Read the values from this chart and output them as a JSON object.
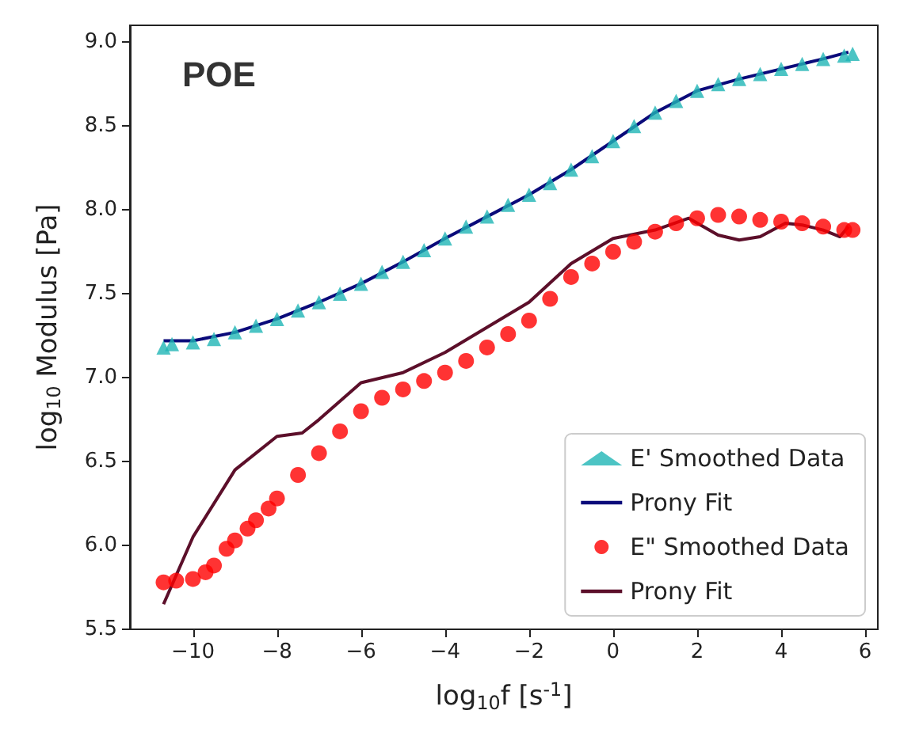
{
  "chart_data": {
    "type": "scatter",
    "xlabel": "log$_{10}$f [s$^{-1}$]",
    "ylabel": "log$_{10}$ Modulus [Pa]",
    "annotations": [
      "POE"
    ],
    "xlim": [
      -11.5,
      6.3
    ],
    "xticks": [
      -10,
      -8,
      -6,
      -4,
      -2,
      0,
      2,
      4,
      6
    ],
    "ylim": [
      5.5,
      9.1
    ],
    "yticks": [
      5.5,
      {
        "value": 6,
        "label": "6.0"
      },
      6.5,
      {
        "value": 7,
        "label": "7.0"
      },
      7.5,
      {
        "value": 8,
        "label": "8.0"
      },
      8.5,
      {
        "value": 9,
        "label": "9.0"
      }
    ],
    "grid": false,
    "legend": "bottom right",
    "series": [
      {
        "name": "E' Smoothed Data",
        "marker": "triangle",
        "color": "#1fb5b5",
        "x": [
          -10.7,
          -10.5,
          -10,
          -9.5,
          -9,
          -8.5,
          -8,
          -7.5,
          -7,
          -6.5,
          -6,
          -5.5,
          -5,
          -4.5,
          -4,
          -3.5,
          -3,
          -2.5,
          -2,
          -1.5,
          -1,
          -0.5,
          0,
          0.5,
          1,
          1.5,
          2,
          2.5,
          3,
          3.5,
          4,
          4.5,
          5,
          5.5,
          5.7
        ],
        "values": [
          7.18,
          7.2,
          7.21,
          7.23,
          7.27,
          7.31,
          7.35,
          7.4,
          7.45,
          7.5,
          7.56,
          7.63,
          7.69,
          7.76,
          7.83,
          7.9,
          7.96,
          8.03,
          8.09,
          8.16,
          8.24,
          8.32,
          8.41,
          8.5,
          8.58,
          8.65,
          8.71,
          8.75,
          8.78,
          8.81,
          8.84,
          8.87,
          8.9,
          8.92,
          8.93
        ]
      },
      {
        "name": "Prony Fit",
        "type": "line",
        "marker": "none",
        "color": "#0a0a7a",
        "x": [
          -10.7,
          -10,
          -9,
          -8,
          -7,
          -6,
          -5,
          -4,
          -3,
          -2,
          -1,
          0,
          1,
          2,
          3,
          4,
          5,
          5.6
        ],
        "values": [
          7.22,
          7.22,
          7.27,
          7.35,
          7.45,
          7.56,
          7.69,
          7.83,
          7.96,
          8.09,
          8.24,
          8.41,
          8.58,
          8.71,
          8.78,
          8.84,
          8.9,
          8.94
        ]
      },
      {
        "name": "E\" Smoothed Data",
        "marker": "circle",
        "color": "#ff0000",
        "x": [
          -10.7,
          -10.4,
          -10,
          -9.7,
          -9.5,
          -9.2,
          -9,
          -8.7,
          -8.5,
          -8.2,
          -8,
          -7.5,
          -7,
          -6.5,
          -6,
          -5.5,
          -5,
          -4.5,
          -4,
          -3.5,
          -3,
          -2.5,
          -2,
          -1.5,
          -1,
          -0.5,
          0,
          0.5,
          1,
          1.5,
          2,
          2.5,
          3,
          3.5,
          4,
          4.5,
          5,
          5.5,
          5.7
        ],
        "values": [
          5.78,
          5.79,
          5.8,
          5.84,
          5.88,
          5.98,
          6.03,
          6.1,
          6.15,
          6.22,
          6.28,
          6.42,
          6.55,
          6.68,
          6.8,
          6.88,
          6.93,
          6.98,
          7.03,
          7.1,
          7.18,
          7.26,
          7.34,
          7.47,
          7.6,
          7.68,
          7.75,
          7.81,
          7.87,
          7.92,
          7.95,
          7.97,
          7.96,
          7.94,
          7.93,
          7.92,
          7.9,
          7.88,
          7.88
        ]
      },
      {
        "name": "Prony Fit",
        "type": "line",
        "marker": "none",
        "color": "#5c0f2a",
        "x": [
          -10.7,
          -10,
          -9.2,
          -9,
          -8,
          -7.4,
          -7,
          -6,
          -5,
          -4,
          -3,
          -2,
          -1,
          0,
          1,
          1.8,
          2.5,
          3,
          3.5,
          4.1,
          4.5,
          5,
          5.4,
          5.6
        ],
        "values": [
          5.65,
          6.05,
          6.37,
          6.45,
          6.65,
          6.67,
          6.75,
          6.97,
          7.03,
          7.15,
          7.3,
          7.45,
          7.68,
          7.83,
          7.88,
          7.95,
          7.85,
          7.82,
          7.84,
          7.92,
          7.91,
          7.88,
          7.84,
          7.9
        ]
      }
    ]
  }
}
